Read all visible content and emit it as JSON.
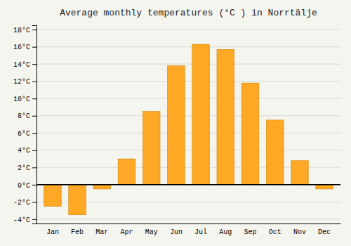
{
  "chart_data": {
    "type": "bar",
    "title": "Average monthly temperatures (°C ) in Norrtälje",
    "categories": [
      "Jan",
      "Feb",
      "Mar",
      "Apr",
      "May",
      "Jun",
      "Jul",
      "Aug",
      "Sep",
      "Oct",
      "Nov",
      "Dec"
    ],
    "values": [
      -2.5,
      -3.5,
      -0.5,
      3.0,
      8.5,
      13.8,
      16.3,
      15.7,
      11.8,
      7.5,
      2.8,
      -0.5
    ],
    "color": "#FFA826",
    "ylim": [
      -4.5,
      18.5
    ],
    "yticks": [
      {
        "value": -4,
        "label": "-4°C"
      },
      {
        "value": -2,
        "label": "-2°C"
      },
      {
        "value": 0,
        "label": "0°C"
      },
      {
        "value": 2,
        "label": "2°C"
      },
      {
        "value": 4,
        "label": "4°C"
      },
      {
        "value": 6,
        "label": "6°C"
      },
      {
        "value": 8,
        "label": "8°C"
      },
      {
        "value": 10,
        "label": "10°C"
      },
      {
        "value": 12,
        "label": "12°C"
      },
      {
        "value": 14,
        "label": "14°C"
      },
      {
        "value": 16,
        "label": "16°C"
      },
      {
        "value": 18,
        "label": "18°C"
      }
    ],
    "grid": true
  }
}
